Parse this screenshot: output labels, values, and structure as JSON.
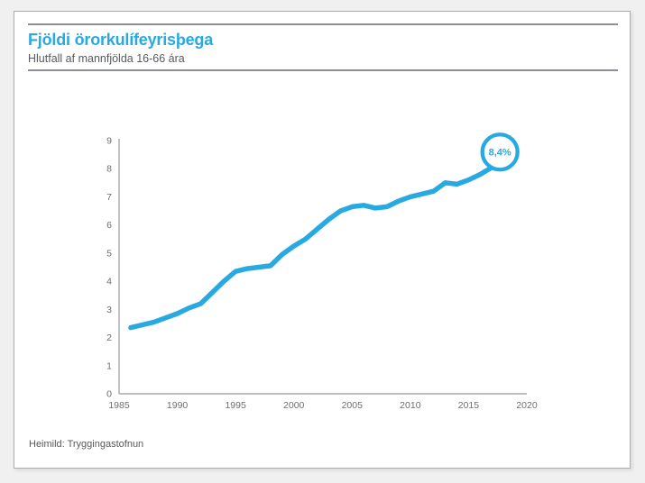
{
  "header": {
    "title": "Fjöldi örorkulífeyrisþega",
    "subtitle": "Hlutfall af mannfjölda 16-66 ára"
  },
  "footer": {
    "source": "Heimild: Tryggingastofnun"
  },
  "colors": {
    "accent_blue": "#29A9E2",
    "text_gray": "#58595B",
    "axis_gray": "#A7A9AC",
    "tick_label_gray": "#6D6E71",
    "rule_gray": "#8C8F93",
    "card_background": "#FFFFFF",
    "page_background": "#F0F0F1"
  },
  "chart_data": {
    "type": "line",
    "title": "Fjöldi örorkulífeyrisþega",
    "subtitle": "Hlutfall af mannfjölda 16-66 ára",
    "xlabel": "",
    "ylabel": "",
    "xlim": [
      1985,
      2020
    ],
    "ylim": [
      0,
      9
    ],
    "x_ticks": [
      "1985",
      "1990",
      "1995",
      "2000",
      "2005",
      "2010",
      "2015",
      "2020"
    ],
    "x_tick_values": [
      1985,
      1990,
      1995,
      2000,
      2005,
      2010,
      2015,
      2020
    ],
    "y_ticks": [
      "0",
      "1",
      "2",
      "3",
      "4",
      "5",
      "6",
      "7",
      "8",
      "9"
    ],
    "y_tick_values": [
      0,
      1,
      2,
      3,
      4,
      5,
      6,
      7,
      8,
      9
    ],
    "grid": false,
    "legend": "none",
    "line_color": "#29A9E2",
    "x": [
      1986,
      1987,
      1988,
      1989,
      1990,
      1991,
      1992,
      1993,
      1994,
      1995,
      1996,
      1997,
      1998,
      1999,
      2000,
      2001,
      2002,
      2003,
      2004,
      2005,
      2006,
      2007,
      2008,
      2009,
      2010,
      2011,
      2012,
      2013,
      2014,
      2015,
      2016,
      2017,
      2018
    ],
    "values": [
      2.35,
      2.45,
      2.55,
      2.7,
      2.85,
      3.05,
      3.2,
      3.6,
      4.0,
      4.35,
      4.45,
      4.5,
      4.55,
      4.95,
      5.25,
      5.5,
      5.85,
      6.2,
      6.5,
      6.65,
      6.7,
      6.6,
      6.65,
      6.85,
      7.0,
      7.1,
      7.2,
      7.5,
      7.45,
      7.6,
      7.8,
      8.05,
      8.4
    ],
    "callout": {
      "label": "8,4%",
      "year": 2018,
      "value": 8.4
    }
  }
}
